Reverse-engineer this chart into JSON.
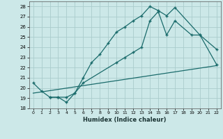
{
  "xlabel": "Humidex (Indice chaleur)",
  "bg_color": "#cce8e8",
  "grid_color": "#aacccc",
  "line_color": "#1a6b6b",
  "xlim": [
    -0.5,
    22.5
  ],
  "ylim": [
    18,
    28.5
  ],
  "xticks": [
    0,
    1,
    2,
    3,
    4,
    5,
    6,
    7,
    8,
    9,
    10,
    11,
    12,
    13,
    14,
    15,
    16,
    17,
    18,
    19,
    20,
    21,
    22
  ],
  "yticks": [
    18,
    19,
    20,
    21,
    22,
    23,
    24,
    25,
    26,
    27,
    28
  ],
  "line1_x": [
    0,
    1,
    2,
    3,
    4,
    5,
    6,
    7,
    8,
    9,
    10,
    11,
    12,
    13,
    14,
    15,
    16,
    17,
    20,
    22
  ],
  "line1_y": [
    20.5,
    19.7,
    19.1,
    19.1,
    18.6,
    19.5,
    21.0,
    22.5,
    23.3,
    24.4,
    25.5,
    26.0,
    26.6,
    27.1,
    28.0,
    27.6,
    27.1,
    27.9,
    25.2,
    23.8
  ],
  "line2_x": [
    2,
    3,
    4,
    5,
    6,
    10,
    11,
    12,
    13,
    14,
    15,
    16,
    17,
    19,
    20,
    22
  ],
  "line2_y": [
    19.1,
    19.1,
    19.1,
    19.5,
    20.5,
    22.5,
    23.0,
    23.5,
    24.0,
    26.6,
    27.5,
    25.2,
    26.6,
    25.2,
    25.2,
    22.3
  ],
  "line3_x": [
    0,
    22
  ],
  "line3_y": [
    19.5,
    22.2
  ]
}
